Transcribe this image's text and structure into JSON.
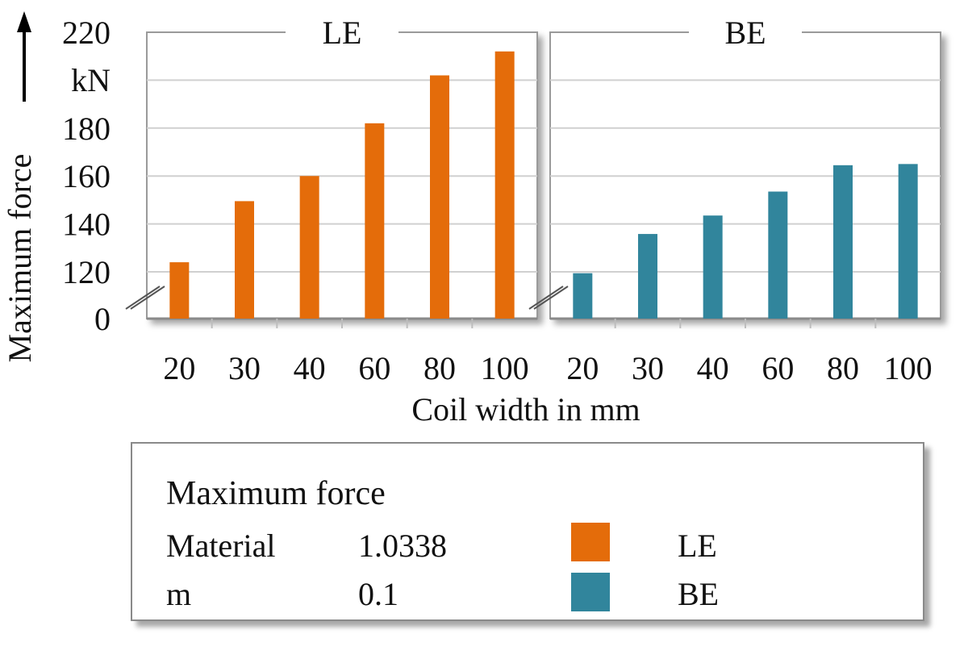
{
  "chart_data": {
    "type": "bar",
    "ylabel": "Maximum force",
    "yunit": "kN",
    "xlabel": "Coil width in mm",
    "axis_break": true,
    "ytick_labels": [
      "0",
      "120",
      "140",
      "160",
      "180",
      "",
      "220"
    ],
    "ylim": [
      110,
      220
    ],
    "grid": true,
    "categories": [
      "20",
      "30",
      "40",
      "60",
      "80",
      "100"
    ],
    "panels": [
      {
        "title": "LE",
        "color": "#e46c0a",
        "values": [
          124,
          149.5,
          160,
          182,
          202,
          212
        ]
      },
      {
        "title": "BE",
        "color": "#31859c",
        "values": [
          116.5,
          135.8,
          143.5,
          153.5,
          164.5,
          165
        ]
      }
    ]
  },
  "legend": {
    "title": "Maximum force",
    "rows": [
      {
        "key": "Material",
        "value": "1.0338"
      },
      {
        "key": "m",
        "value": "0.1"
      }
    ],
    "entries": [
      {
        "label": "LE",
        "color": "#e46c0a"
      },
      {
        "label": "BE",
        "color": "#31859c"
      }
    ]
  }
}
